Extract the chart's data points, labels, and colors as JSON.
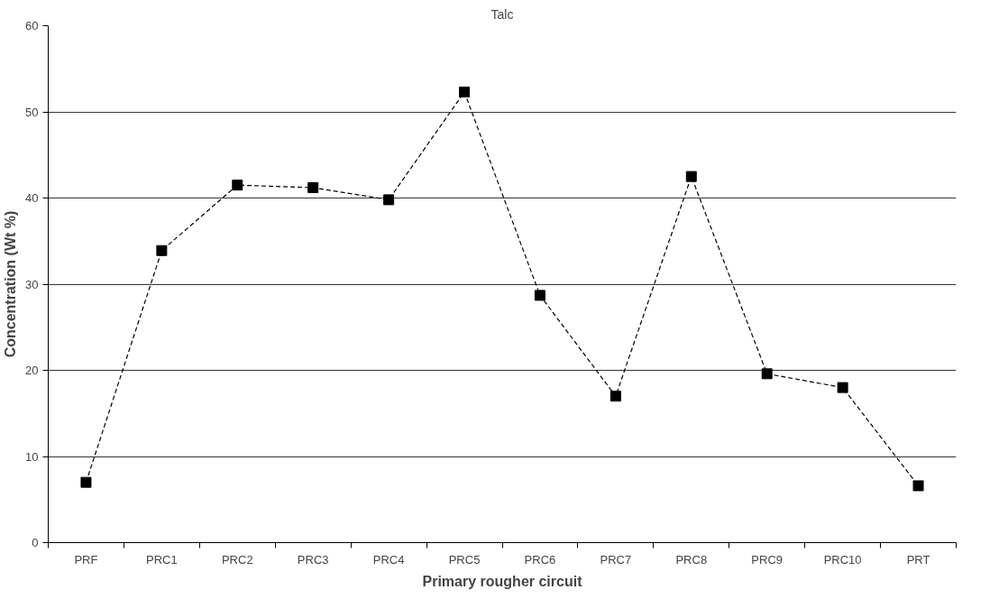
{
  "chart_data": {
    "type": "line",
    "title": "Talc",
    "xlabel": "Primary rougher circuit",
    "ylabel": "Concentration (Wt %)",
    "categories": [
      "PRF",
      "PRC1",
      "PRC2",
      "PRC3",
      "PRC4",
      "PRC5",
      "PRC6",
      "PRC7",
      "PRC8",
      "PRC9",
      "PRC10",
      "PRT"
    ],
    "series": [
      {
        "color": "#000000",
        "values": [
          7.0,
          33.9,
          41.5,
          41.2,
          39.8,
          52.3,
          28.7,
          17.0,
          42.5,
          19.6,
          18.0,
          6.6
        ]
      }
    ],
    "ylim": [
      0,
      60
    ],
    "yticks": [
      0,
      10,
      20,
      30,
      40,
      50,
      60
    ],
    "grid": "y",
    "marker": "square",
    "line_style": "dashed"
  }
}
